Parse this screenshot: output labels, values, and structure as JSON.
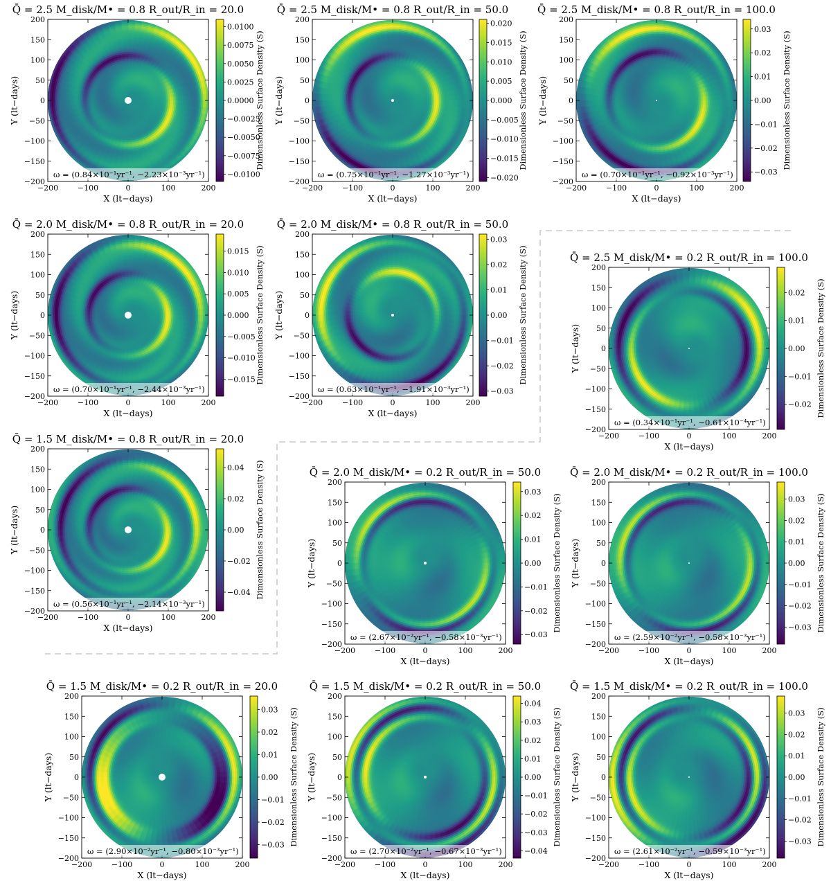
{
  "axis_labels": {
    "x": "X (lt−days)",
    "y": "Y (lt−days)",
    "colorbar": "Dimensionless Surface Density (S)"
  },
  "colors": {
    "colormap": "viridis",
    "separator_line": "#c8c8c8",
    "background": "#ffffff"
  },
  "chart_data": [
    {
      "type": "heatmap",
      "panel": "Q2.5-M0.8-R20",
      "title": "Q̄ = 2.5   M_disk/M• = 0.8   R_out/R_in = 20.0",
      "Q": 2.5,
      "Mdisk_over_Mbh": 0.8,
      "Rout_over_Rin": 20.0,
      "xlim": [
        -200,
        200
      ],
      "ylim": [
        -200,
        200
      ],
      "xticks": [
        -200,
        -100,
        0,
        100,
        200
      ],
      "yticks": [
        -200,
        -150,
        -100,
        -50,
        0,
        50,
        100,
        150,
        200
      ],
      "colorbar_range": [
        -0.011,
        0.011
      ],
      "colorbar_ticks": [
        "0.0100",
        "0.0075",
        "0.0050",
        "0.0025",
        "0.0000",
        "−0.0025",
        "−0.0050",
        "−0.0075",
        "−0.0100"
      ],
      "omega": "ω = (0.84×10⁻¹yr⁻¹, −2.23×10⁻³yr⁻¹)"
    },
    {
      "type": "heatmap",
      "panel": "Q2.5-M0.8-R50",
      "title": "Q̄ = 2.5   M_disk/M• = 0.8   R_out/R_in = 50.0",
      "Q": 2.5,
      "Mdisk_over_Mbh": 0.8,
      "Rout_over_Rin": 50.0,
      "xlim": [
        -200,
        200
      ],
      "ylim": [
        -200,
        200
      ],
      "xticks": [
        -200,
        -100,
        0,
        100,
        200
      ],
      "yticks": [
        -200,
        -150,
        -100,
        -50,
        0,
        50,
        100,
        150,
        200
      ],
      "colorbar_range": [
        -0.021,
        0.021
      ],
      "colorbar_ticks": [
        "0.020",
        "0.015",
        "0.010",
        "0.005",
        "0.000",
        "−0.005",
        "−0.010",
        "−0.015",
        "−0.020"
      ],
      "omega": "ω = (0.75×10⁻¹yr⁻¹, −1.27×10⁻³yr⁻¹)"
    },
    {
      "type": "heatmap",
      "panel": "Q2.5-M0.8-R100",
      "title": "Q̄ = 2.5   M_disk/M• = 0.8   R_out/R_in = 100.0",
      "Q": 2.5,
      "Mdisk_over_Mbh": 0.8,
      "Rout_over_Rin": 100.0,
      "xlim": [
        -200,
        200
      ],
      "ylim": [
        -200,
        200
      ],
      "xticks": [
        -200,
        -100,
        0,
        100,
        200
      ],
      "yticks": [
        -200,
        -150,
        -100,
        -50,
        0,
        50,
        100,
        150,
        200
      ],
      "colorbar_range": [
        -0.034,
        0.034
      ],
      "colorbar_ticks": [
        "0.03",
        "0.02",
        "0.01",
        "0.00",
        "−0.01",
        "−0.02",
        "−0.03"
      ],
      "omega": "ω = (0.70×10⁻¹yr⁻¹, −0.92×10⁻³yr⁻¹)"
    },
    {
      "type": "heatmap",
      "panel": "Q2.0-M0.8-R20",
      "title": "Q̄ = 2.0   M_disk/M• = 0.8   R_out/R_in = 20.0",
      "Q": 2.0,
      "Mdisk_over_Mbh": 0.8,
      "Rout_over_Rin": 20.0,
      "xlim": [
        -200,
        200
      ],
      "ylim": [
        -200,
        200
      ],
      "xticks": [
        -200,
        -100,
        0,
        100,
        200
      ],
      "yticks": [
        -200,
        -150,
        -100,
        -50,
        0,
        50,
        100,
        150,
        200
      ],
      "colorbar_range": [
        -0.019,
        0.019
      ],
      "colorbar_ticks": [
        "0.015",
        "0.010",
        "0.005",
        "0.000",
        "−0.005",
        "−0.010",
        "−0.015"
      ],
      "omega": "ω = (0.70×10⁻¹yr⁻¹, −2.44×10⁻³yr⁻¹)"
    },
    {
      "type": "heatmap",
      "panel": "Q2.0-M0.8-R50",
      "title": "Q̄ = 2.0   M_disk/M• = 0.8   R_out/R_in = 50.0",
      "Q": 2.0,
      "Mdisk_over_Mbh": 0.8,
      "Rout_over_Rin": 50.0,
      "xlim": [
        -200,
        200
      ],
      "ylim": [
        -200,
        200
      ],
      "xticks": [
        -200,
        -100,
        0,
        100,
        200
      ],
      "yticks": [
        -200,
        -150,
        -100,
        -50,
        0,
        50,
        100,
        150,
        200
      ],
      "colorbar_range": [
        -0.032,
        0.032
      ],
      "colorbar_ticks": [
        "0.03",
        "0.02",
        "0.01",
        "0.00",
        "−0.01",
        "−0.02",
        "−0.03"
      ],
      "omega": "ω = (0.63×10⁻¹yr⁻¹, −1.91×10⁻³yr⁻¹)"
    },
    {
      "type": "heatmap",
      "panel": "Q2.5-M0.2-R100",
      "title": "Q̄ = 2.5   M_disk/M• = 0.2   R_out/R_in = 100.0",
      "Q": 2.5,
      "Mdisk_over_Mbh": 0.2,
      "Rout_over_Rin": 100.0,
      "xlim": [
        -200,
        200
      ],
      "ylim": [
        -200,
        200
      ],
      "xticks": [
        -200,
        -100,
        0,
        100,
        200
      ],
      "yticks": [
        -200,
        -150,
        -100,
        -50,
        0,
        50,
        100,
        150,
        200
      ],
      "colorbar_range": [
        -0.029,
        0.029
      ],
      "colorbar_ticks": [
        "0.02",
        "0.01",
        "0.00",
        "−0.01",
        "−0.02"
      ],
      "omega": "ω = (0.34×10⁻¹yr⁻¹, −0.61×10⁻⁴yr⁻¹)"
    },
    {
      "type": "heatmap",
      "panel": "Q1.5-M0.8-R20",
      "title": "Q̄ = 1.5   M_disk/M• = 0.8   R_out/R_in = 20.0",
      "Q": 1.5,
      "Mdisk_over_Mbh": 0.8,
      "Rout_over_Rin": 20.0,
      "xlim": [
        -200,
        200
      ],
      "ylim": [
        -200,
        200
      ],
      "xticks": [
        -200,
        -100,
        0,
        100,
        200
      ],
      "yticks": [
        -200,
        -150,
        -100,
        -50,
        0,
        50,
        100,
        150,
        200
      ],
      "colorbar_range": [
        -0.052,
        0.052
      ],
      "colorbar_ticks": [
        "0.04",
        "0.02",
        "0.00",
        "−0.02",
        "−0.04"
      ],
      "omega": "ω = (0.56×10⁻¹yr⁻¹, −2.14×10⁻³yr⁻¹)"
    },
    {
      "type": "heatmap",
      "panel": "Q2.0-M0.2-R50",
      "title": "Q̄ = 2.0   M_disk/M• = 0.2   R_out/R_in = 50.0",
      "Q": 2.0,
      "Mdisk_over_Mbh": 0.2,
      "Rout_over_Rin": 50.0,
      "xlim": [
        -200,
        200
      ],
      "ylim": [
        -200,
        200
      ],
      "xticks": [
        -200,
        -100,
        0,
        100,
        200
      ],
      "yticks": [
        -200,
        -150,
        -100,
        -50,
        0,
        50,
        100,
        150,
        200
      ],
      "colorbar_range": [
        -0.034,
        0.034
      ],
      "colorbar_ticks": [
        "0.03",
        "0.02",
        "0.01",
        "0.00",
        "−0.01",
        "−0.02",
        "−0.03"
      ],
      "omega": "ω = (2.67×10⁻²yr⁻¹, −0.58×10⁻³yr⁻¹)"
    },
    {
      "type": "heatmap",
      "panel": "Q2.0-M0.2-R100",
      "title": "Q̄ = 2.0   M_disk/M• = 0.2   R_out/R_in = 100.0",
      "Q": 2.0,
      "Mdisk_over_Mbh": 0.2,
      "Rout_over_Rin": 100.0,
      "xlim": [
        -200,
        200
      ],
      "ylim": [
        -200,
        200
      ],
      "xticks": [
        -200,
        -100,
        0,
        100,
        200
      ],
      "yticks": [
        -200,
        -150,
        -100,
        -50,
        0,
        50,
        100,
        150,
        200
      ],
      "colorbar_range": [
        -0.038,
        0.038
      ],
      "colorbar_ticks": [
        "0.03",
        "0.02",
        "0.01",
        "0.00",
        "−0.01",
        "−0.02",
        "−0.03"
      ],
      "omega": "ω = (2.59×10⁻²yr⁻¹, −0.58×10⁻³yr⁻¹)"
    },
    {
      "type": "heatmap",
      "panel": "Q1.5-M0.2-R20",
      "title": "Q̄ = 1.5   M_disk/M• = 0.2   R_out/R_in = 20.0",
      "Q": 1.5,
      "Mdisk_over_Mbh": 0.2,
      "Rout_over_Rin": 20.0,
      "xlim": [
        -200,
        200
      ],
      "ylim": [
        -200,
        200
      ],
      "xticks": [
        -200,
        -100,
        0,
        100,
        200
      ],
      "yticks": [
        -200,
        -150,
        -100,
        -50,
        0,
        50,
        100,
        150,
        200
      ],
      "colorbar_range": [
        -0.036,
        0.036
      ],
      "colorbar_ticks": [
        "0.03",
        "0.02",
        "0.01",
        "0.00",
        "−0.01",
        "−0.02",
        "−0.03"
      ],
      "omega": "ω = (2.90×10⁻²yr⁻¹, −0.80×10⁻³yr⁻¹)"
    },
    {
      "type": "heatmap",
      "panel": "Q1.5-M0.2-R50",
      "title": "Q̄ = 1.5   M_disk/M• = 0.2   R_out/R_in = 50.0",
      "Q": 1.5,
      "Mdisk_over_Mbh": 0.2,
      "Rout_over_Rin": 50.0,
      "xlim": [
        -200,
        200
      ],
      "ylim": [
        -200,
        200
      ],
      "xticks": [
        -200,
        -100,
        0,
        100,
        200
      ],
      "yticks": [
        -200,
        -150,
        -100,
        -50,
        0,
        50,
        100,
        150,
        200
      ],
      "colorbar_range": [
        -0.044,
        0.044
      ],
      "colorbar_ticks": [
        "0.04",
        "0.03",
        "0.02",
        "0.01",
        "0.00",
        "−0.01",
        "−0.02",
        "−0.03",
        "−0.04"
      ],
      "omega": "ω = (2.70×10⁻²yr⁻¹, −0.67×10⁻³yr⁻¹)"
    },
    {
      "type": "heatmap",
      "panel": "Q1.5-M0.2-R100",
      "title": "Q̄ = 1.5   M_disk/M• = 0.2   R_out/R_in = 100.0",
      "Q": 1.5,
      "Mdisk_over_Mbh": 0.2,
      "Rout_over_Rin": 100.0,
      "xlim": [
        -200,
        200
      ],
      "ylim": [
        -200,
        200
      ],
      "xticks": [
        -200,
        -100,
        0,
        100,
        200
      ],
      "yticks": [
        -200,
        -150,
        -100,
        -50,
        0,
        50,
        100,
        150,
        200
      ],
      "colorbar_range": [
        -0.038,
        0.038
      ],
      "colorbar_ticks": [
        "0.03",
        "0.02",
        "0.01",
        "0.00",
        "−0.01",
        "−0.02",
        "−0.03"
      ],
      "omega": "ω = (2.61×10⁻²yr⁻¹, −0.59×10⁻³yr⁻¹)"
    }
  ]
}
